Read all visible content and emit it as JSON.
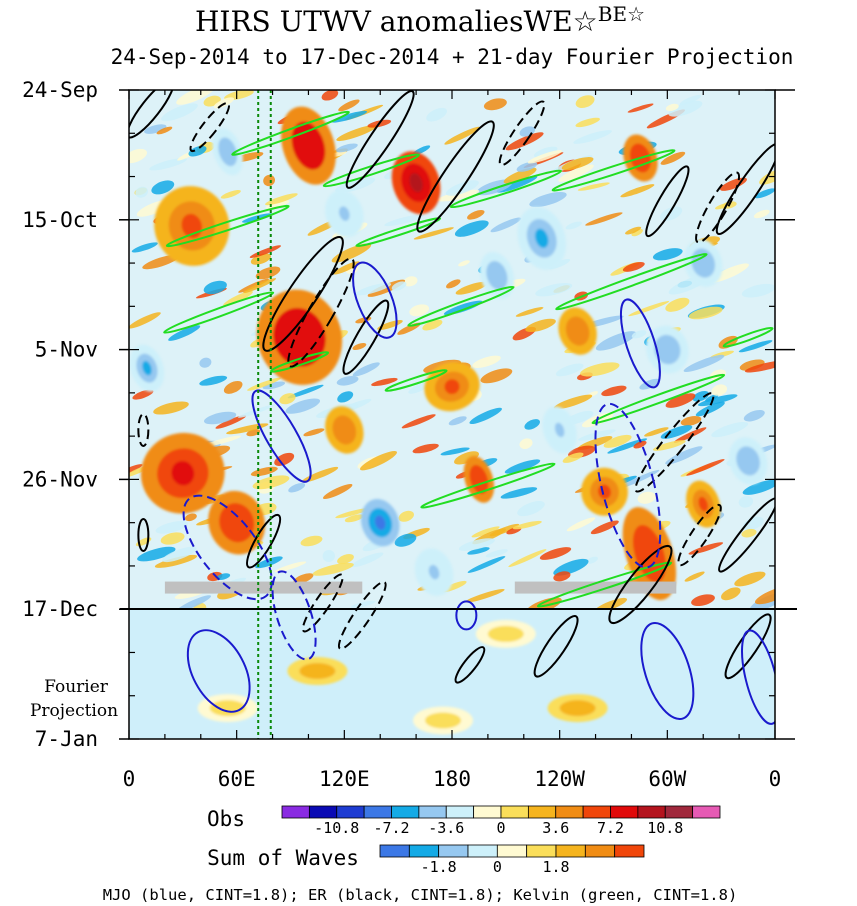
{
  "chart_data": {
    "type": "heatmap",
    "title": "HIRS UTWV anomaliesWE☆",
    "title_superscript": "BE☆",
    "subtitle": "24-Sep-2014 to 17-Dec-2014 + 21-day Fourier Projection",
    "x_ticks": [
      "0",
      "60E",
      "120E",
      "180",
      "120W",
      "60W",
      "0"
    ],
    "x_range_deg_east": [
      0,
      360
    ],
    "y_ticks": [
      "24-Sep",
      "15-Oct",
      "5-Nov",
      "26-Nov",
      "17-Dec",
      "7-Jan"
    ],
    "y_tick_days": [
      0,
      21,
      42,
      63,
      84,
      105
    ],
    "fourier_label": [
      "Fourier",
      "Projection"
    ],
    "observation_end_day": 84,
    "reference_longitudes_deg": [
      72,
      79
    ],
    "obs_legend": {
      "label": "Obs",
      "tick_labels": [
        "-10.8",
        "-7.2",
        "-3.6",
        "0",
        "3.6",
        "7.2",
        "10.8"
      ],
      "colors": [
        "#8a2be2",
        "#0a0ab4",
        "#1e3cd2",
        "#3c78e6",
        "#14aae6",
        "#96c8f0",
        "#cdf0fa",
        "#fffad2",
        "#fade5a",
        "#f5b41e",
        "#f08c14",
        "#f0460a",
        "#e10a0a",
        "#b4141e",
        "#a0283c",
        "#e65ab4"
      ]
    },
    "waves_legend": {
      "label": "Sum of Waves",
      "tick_labels": [
        "-1.8",
        "0",
        "1.8"
      ],
      "colors": [
        "#3c78e6",
        "#14aae6",
        "#96c8f0",
        "#cdf0fa",
        "#fffad2",
        "#fade5a",
        "#f5b41e",
        "#f08c14",
        "#f0460a"
      ]
    },
    "footer": "MJO (blue, CINT=1.8); ER (black, CINT=1.8); Kelvin (green, CINT=1.8)",
    "series": [
      {
        "name": "MJO",
        "color": "#1a1acd",
        "cint": 1.8
      },
      {
        "name": "ER",
        "color": "#000000",
        "cint": 1.8
      },
      {
        "name": "Kelvin",
        "color": "#22dd22",
        "cint": 1.8
      }
    ],
    "missing_bands": [
      {
        "lon_start": 20,
        "lon_end": 130,
        "day": 80.5
      },
      {
        "lon_start": 215,
        "lon_end": 305,
        "day": 80.5
      }
    ],
    "projection_anomalies": [
      {
        "lon": 105,
        "day": 94,
        "value": 2.5
      },
      {
        "lon": 210,
        "day": 88,
        "value": 1.2
      },
      {
        "lon": 250,
        "day": 100,
        "value": 2.5
      },
      {
        "lon": 55,
        "day": 100,
        "value": 1.0
      },
      {
        "lon": 175,
        "day": 102,
        "value": 1.0
      }
    ],
    "mjo_contours": [
      {
        "lon": 137,
        "day": 34,
        "rx": 17,
        "ry": 40,
        "rot": -22,
        "dashed": false
      },
      {
        "lon": 85,
        "day": 56,
        "rx": 15,
        "ry": 52,
        "rot": -30,
        "dashed": false
      },
      {
        "lon": 285,
        "day": 41,
        "rx": 14,
        "ry": 46,
        "rot": -18,
        "dashed": false
      },
      {
        "lon": 278,
        "day": 64,
        "rx": 26,
        "ry": 84,
        "rot": -14,
        "dashed": true
      },
      {
        "lon": 55,
        "day": 74,
        "rx": 28,
        "ry": 62,
        "rot": -38,
        "dashed": true
      },
      {
        "lon": 92,
        "day": 85,
        "rx": 17,
        "ry": 46,
        "rot": -18,
        "dashed": true
      },
      {
        "lon": 300,
        "day": 94,
        "rx": 22,
        "ry": 50,
        "rot": -18,
        "dashed": false
      },
      {
        "lon": 352,
        "day": 95,
        "rx": 15,
        "ry": 48,
        "rot": -14,
        "dashed": false
      },
      {
        "lon": 50,
        "day": 94,
        "rx": 26,
        "ry": 44,
        "rot": -28,
        "dashed": false
      },
      {
        "lon": 188,
        "day": 85,
        "rx": 10,
        "ry": 14,
        "rot": 0,
        "dashed": false
      }
    ],
    "er_contours": [
      {
        "lon": 12,
        "day": 3,
        "rx": 9,
        "ry": 36,
        "rot": 38,
        "dashed": false
      },
      {
        "lon": 45,
        "day": 6,
        "rx": 7,
        "ry": 30,
        "rot": 38,
        "dashed": true
      },
      {
        "lon": 140,
        "day": 8,
        "rx": 10,
        "ry": 58,
        "rot": 34,
        "dashed": false
      },
      {
        "lon": 182,
        "day": 14,
        "rx": 12,
        "ry": 66,
        "rot": 34,
        "dashed": false
      },
      {
        "lon": 219,
        "day": 7,
        "rx": 8,
        "ry": 38,
        "rot": 34,
        "dashed": true
      },
      {
        "lon": 97,
        "day": 33,
        "rx": 14,
        "ry": 68,
        "rot": 34,
        "dashed": false
      },
      {
        "lon": 107,
        "day": 36,
        "rx": 12,
        "ry": 62,
        "rot": 30,
        "dashed": true
      },
      {
        "lon": 132,
        "day": 40,
        "rx": 9,
        "ry": 42,
        "rot": 30,
        "dashed": false
      },
      {
        "lon": 300,
        "day": 18,
        "rx": 8,
        "ry": 40,
        "rot": 30,
        "dashed": false
      },
      {
        "lon": 328,
        "day": 19,
        "rx": 9,
        "ry": 40,
        "rot": 30,
        "dashed": true
      },
      {
        "lon": 345,
        "day": 16,
        "rx": 10,
        "ry": 54,
        "rot": 34,
        "dashed": false
      },
      {
        "lon": 304,
        "day": 57,
        "rx": 10,
        "ry": 62,
        "rot": 38,
        "dashed": true
      },
      {
        "lon": 75,
        "day": 73,
        "rx": 8,
        "ry": 30,
        "rot": 30,
        "dashed": false
      },
      {
        "lon": 8,
        "day": 55,
        "rx": 5,
        "ry": 16,
        "rot": 0,
        "dashed": true
      },
      {
        "lon": 8,
        "day": 72,
        "rx": 5,
        "ry": 16,
        "rot": 0,
        "dashed": false
      },
      {
        "lon": 285,
        "day": 80,
        "rx": 12,
        "ry": 48,
        "rot": 38,
        "dashed": false
      },
      {
        "lon": 345,
        "day": 72,
        "rx": 8,
        "ry": 46,
        "rot": 38,
        "dashed": false
      },
      {
        "lon": 108,
        "day": 83,
        "rx": 7,
        "ry": 34,
        "rot": 34,
        "dashed": true
      },
      {
        "lon": 130,
        "day": 85,
        "rx": 8,
        "ry": 40,
        "rot": 34,
        "dashed": true
      },
      {
        "lon": 318,
        "day": 72,
        "rx": 8,
        "ry": 36,
        "rot": 34,
        "dashed": true
      },
      {
        "lon": 345,
        "day": 90,
        "rx": 9,
        "ry": 38,
        "rot": 34,
        "dashed": false
      },
      {
        "lon": 238,
        "day": 90,
        "rx": 9,
        "ry": 36,
        "rot": 34,
        "dashed": false
      },
      {
        "lon": 190,
        "day": 93,
        "rx": 6,
        "ry": 22,
        "rot": 38,
        "dashed": false
      }
    ],
    "kelvin_contours": [
      {
        "lon": 90,
        "day": 7,
        "rx": 4,
        "ry": 62,
        "rot": 70,
        "dashed": false
      },
      {
        "lon": 135,
        "day": 13,
        "rx": 4,
        "ry": 50,
        "rot": 72,
        "dashed": false
      },
      {
        "lon": 210,
        "day": 16,
        "rx": 4,
        "ry": 58,
        "rot": 72,
        "dashed": false
      },
      {
        "lon": 270,
        "day": 13,
        "rx": 4,
        "ry": 64,
        "rot": 72,
        "dashed": false
      },
      {
        "lon": 55,
        "day": 22,
        "rx": 4,
        "ry": 64,
        "rot": 72,
        "dashed": false
      },
      {
        "lon": 150,
        "day": 23,
        "rx": 3,
        "ry": 44,
        "rot": 72,
        "dashed": false
      },
      {
        "lon": 280,
        "day": 31,
        "rx": 4,
        "ry": 80,
        "rot": 70,
        "dashed": false
      },
      {
        "lon": 50,
        "day": 36,
        "rx": 4,
        "ry": 58,
        "rot": 70,
        "dashed": false
      },
      {
        "lon": 185,
        "day": 35,
        "rx": 4,
        "ry": 56,
        "rot": 70,
        "dashed": false
      },
      {
        "lon": 345,
        "day": 40,
        "rx": 3,
        "ry": 26,
        "rot": 70,
        "dashed": false
      },
      {
        "lon": 295,
        "day": 50,
        "rx": 4,
        "ry": 70,
        "rot": 70,
        "dashed": false
      },
      {
        "lon": 200,
        "day": 64,
        "rx": 4,
        "ry": 70,
        "rot": 72,
        "dashed": false
      },
      {
        "lon": 160,
        "day": 47,
        "rx": 3,
        "ry": 32,
        "rot": 72,
        "dashed": false
      },
      {
        "lon": 265,
        "day": 80,
        "rx": 4,
        "ry": 70,
        "rot": 72,
        "dashed": false
      },
      {
        "lon": 95,
        "day": 44,
        "rx": 3,
        "ry": 30,
        "rot": 72,
        "dashed": false
      }
    ],
    "heat_blobs": [
      {
        "lon": 100,
        "day": 9,
        "rx": 11,
        "ry": 5,
        "value": 9
      },
      {
        "lon": 160,
        "day": 15,
        "rx": 10,
        "ry": 4,
        "value": 10
      },
      {
        "lon": 285,
        "day": 11,
        "rx": 7,
        "ry": 3,
        "value": 7
      },
      {
        "lon": 35,
        "day": 22,
        "rx": 16,
        "ry": 5,
        "value": 6
      },
      {
        "lon": 95,
        "day": 40,
        "rx": 18,
        "ry": 6,
        "value": 9
      },
      {
        "lon": 30,
        "day": 62,
        "rx": 18,
        "ry": 5,
        "value": 8
      },
      {
        "lon": 180,
        "day": 48,
        "rx": 12,
        "ry": 3,
        "value": 6
      },
      {
        "lon": 290,
        "day": 75,
        "rx": 10,
        "ry": 6,
        "value": 7
      },
      {
        "lon": 250,
        "day": 39,
        "rx": 8,
        "ry": 3,
        "value": 5
      },
      {
        "lon": 320,
        "day": 67,
        "rx": 7,
        "ry": 3,
        "value": 6
      },
      {
        "lon": 195,
        "day": 63,
        "rx": 6,
        "ry": 3,
        "value": 7
      },
      {
        "lon": 120,
        "day": 55,
        "rx": 8,
        "ry": 3,
        "value": 5
      },
      {
        "lon": 60,
        "day": 70,
        "rx": 12,
        "ry": 4,
        "value": 7
      },
      {
        "lon": 265,
        "day": 65,
        "rx": 10,
        "ry": 3,
        "value": 6
      },
      {
        "lon": 140,
        "day": 70,
        "rx": 8,
        "ry": 3,
        "value": -8
      },
      {
        "lon": 230,
        "day": 24,
        "rx": 10,
        "ry": 4,
        "value": -6
      },
      {
        "lon": 55,
        "day": 10,
        "rx": 6,
        "ry": 3,
        "value": -5
      },
      {
        "lon": 205,
        "day": 30,
        "rx": 7,
        "ry": 3,
        "value": -5
      },
      {
        "lon": 120,
        "day": 20,
        "rx": 8,
        "ry": 3,
        "value": -4
      },
      {
        "lon": 300,
        "day": 42,
        "rx": 9,
        "ry": 3,
        "value": -5
      },
      {
        "lon": 10,
        "day": 45,
        "rx": 7,
        "ry": 3,
        "value": -6
      },
      {
        "lon": 320,
        "day": 28,
        "rx": 8,
        "ry": 3,
        "value": -5
      },
      {
        "lon": 170,
        "day": 78,
        "rx": 8,
        "ry": 3,
        "value": -4
      },
      {
        "lon": 240,
        "day": 55,
        "rx": 7,
        "ry": 3,
        "value": -4
      },
      {
        "lon": 345,
        "day": 60,
        "rx": 8,
        "ry": 3,
        "value": -5
      }
    ]
  }
}
